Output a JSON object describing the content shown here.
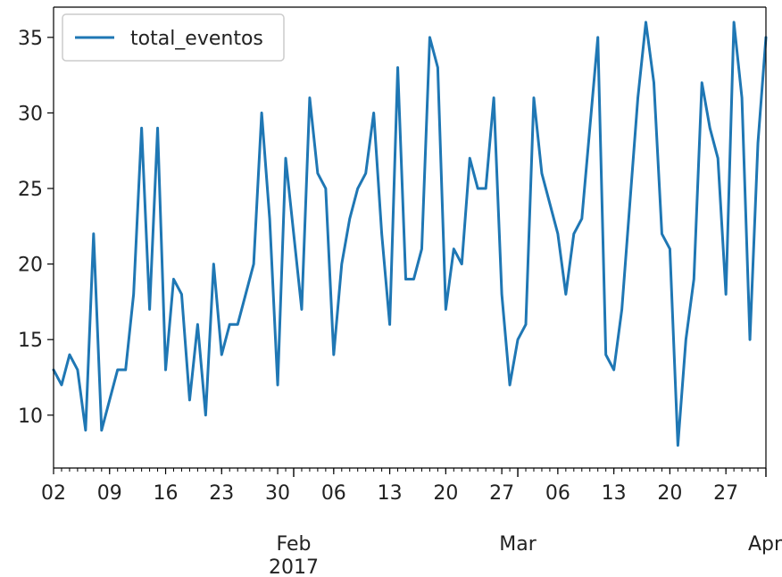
{
  "chart_data": {
    "type": "line",
    "title": "",
    "xlabel": "",
    "ylabel": "",
    "x_start": "2017-01-02",
    "x_end": "2017-04-01",
    "ylim": [
      6.5,
      37
    ],
    "y_ticks": [
      10,
      15,
      20,
      25,
      30,
      35
    ],
    "legend_position": "upper-left",
    "grid": false,
    "x_minor_ticks": [
      "02",
      "09",
      "16",
      "23",
      "30",
      "06",
      "13",
      "20",
      "27",
      "06",
      "13",
      "20",
      "27"
    ],
    "x_major_ticks": [
      {
        "label": "Feb",
        "sublabel": "2017"
      },
      {
        "label": "Mar",
        "sublabel": ""
      },
      {
        "label": "Apr",
        "sublabel": ""
      }
    ],
    "series": [
      {
        "name": "total_eventos",
        "color": "#1f77b4",
        "points": [
          [
            "2017-01-02",
            13
          ],
          [
            "2017-01-03",
            12
          ],
          [
            "2017-01-04",
            14
          ],
          [
            "2017-01-05",
            13
          ],
          [
            "2017-01-06",
            9
          ],
          [
            "2017-01-07",
            22
          ],
          [
            "2017-01-08",
            9
          ],
          [
            "2017-01-09",
            11
          ],
          [
            "2017-01-10",
            13
          ],
          [
            "2017-01-11",
            13
          ],
          [
            "2017-01-12",
            18
          ],
          [
            "2017-01-13",
            29
          ],
          [
            "2017-01-14",
            17
          ],
          [
            "2017-01-15",
            29
          ],
          [
            "2017-01-16",
            13
          ],
          [
            "2017-01-17",
            19
          ],
          [
            "2017-01-18",
            18
          ],
          [
            "2017-01-19",
            11
          ],
          [
            "2017-01-20",
            16
          ],
          [
            "2017-01-21",
            10
          ],
          [
            "2017-01-22",
            20
          ],
          [
            "2017-01-23",
            14
          ],
          [
            "2017-01-24",
            16
          ],
          [
            "2017-01-25",
            16
          ],
          [
            "2017-01-26",
            18
          ],
          [
            "2017-01-27",
            20
          ],
          [
            "2017-01-28",
            30
          ],
          [
            "2017-01-29",
            23
          ],
          [
            "2017-01-30",
            12
          ],
          [
            "2017-01-31",
            27
          ],
          [
            "2017-02-01",
            22
          ],
          [
            "2017-02-02",
            17
          ],
          [
            "2017-02-03",
            31
          ],
          [
            "2017-02-04",
            26
          ],
          [
            "2017-02-05",
            25
          ],
          [
            "2017-02-06",
            14
          ],
          [
            "2017-02-07",
            20
          ],
          [
            "2017-02-08",
            23
          ],
          [
            "2017-02-09",
            25
          ],
          [
            "2017-02-10",
            26
          ],
          [
            "2017-02-11",
            30
          ],
          [
            "2017-02-12",
            22
          ],
          [
            "2017-02-13",
            16
          ],
          [
            "2017-02-14",
            33
          ],
          [
            "2017-02-15",
            19
          ],
          [
            "2017-02-16",
            19
          ],
          [
            "2017-02-17",
            21
          ],
          [
            "2017-02-18",
            35
          ],
          [
            "2017-02-19",
            33
          ],
          [
            "2017-02-20",
            17
          ],
          [
            "2017-02-21",
            21
          ],
          [
            "2017-02-22",
            20
          ],
          [
            "2017-02-23",
            27
          ],
          [
            "2017-02-24",
            25
          ],
          [
            "2017-02-25",
            25
          ],
          [
            "2017-02-26",
            31
          ],
          [
            "2017-02-27",
            18
          ],
          [
            "2017-02-28",
            12
          ],
          [
            "2017-03-01",
            15
          ],
          [
            "2017-03-02",
            16
          ],
          [
            "2017-03-03",
            31
          ],
          [
            "2017-03-04",
            26
          ],
          [
            "2017-03-05",
            24
          ],
          [
            "2017-03-06",
            22
          ],
          [
            "2017-03-07",
            18
          ],
          [
            "2017-03-08",
            22
          ],
          [
            "2017-03-09",
            23
          ],
          [
            "2017-03-10",
            29
          ],
          [
            "2017-03-11",
            35
          ],
          [
            "2017-03-12",
            14
          ],
          [
            "2017-03-13",
            13
          ],
          [
            "2017-03-14",
            17
          ],
          [
            "2017-03-15",
            24
          ],
          [
            "2017-03-16",
            31
          ],
          [
            "2017-03-17",
            36
          ],
          [
            "2017-03-18",
            32
          ],
          [
            "2017-03-19",
            22
          ],
          [
            "2017-03-20",
            21
          ],
          [
            "2017-03-21",
            8
          ],
          [
            "2017-03-22",
            15
          ],
          [
            "2017-03-23",
            19
          ],
          [
            "2017-03-24",
            32
          ],
          [
            "2017-03-25",
            29
          ],
          [
            "2017-03-26",
            27
          ],
          [
            "2017-03-27",
            18
          ],
          [
            "2017-03-28",
            36
          ],
          [
            "2017-03-29",
            31
          ],
          [
            "2017-03-30",
            15
          ],
          [
            "2017-03-31",
            28
          ],
          [
            "2017-04-01",
            35
          ]
        ]
      }
    ]
  }
}
